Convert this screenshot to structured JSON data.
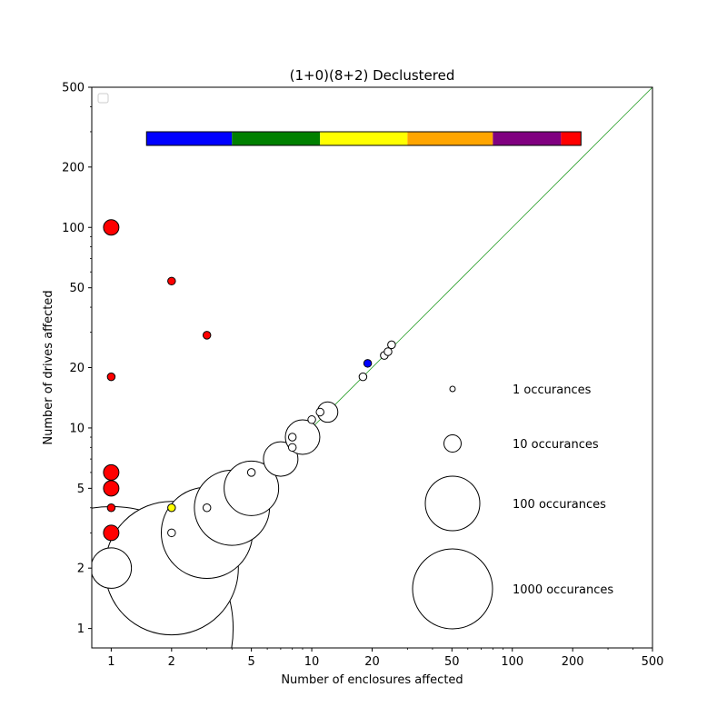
{
  "chart_data": {
    "type": "scatter",
    "title": "(1+0)(8+2) Declustered",
    "xlabel": "Number of enclosures affected",
    "ylabel": "Number of drives affected",
    "xscale": "log",
    "yscale": "log",
    "xlim": [
      0.8,
      500
    ],
    "ylim": [
      0.8,
      500
    ],
    "xticks": [
      1,
      2,
      5,
      10,
      20,
      50,
      100,
      200,
      500
    ],
    "xtick_labels": [
      "1",
      "2",
      "5",
      "10",
      "20",
      "50",
      "100",
      "200",
      "500"
    ],
    "yticks": [
      1,
      2,
      5,
      10,
      20,
      50,
      100,
      200,
      500
    ],
    "ytick_labels": [
      "1",
      "2",
      "5",
      "10",
      "20",
      "50",
      "100",
      "200",
      "500"
    ],
    "grid": false,
    "reference_line": {
      "from": [
        0.8,
        0.8
      ],
      "to": [
        500,
        500
      ],
      "color": "#2ca02c"
    },
    "colorbar": {
      "colors": [
        "#0000ff",
        "#008000",
        "#ffff00",
        "#ffa500",
        "#800080",
        "#ff0000"
      ],
      "breaks": [
        1.5,
        4,
        11,
        30,
        80,
        175,
        220
      ]
    },
    "legend_sizes": [
      {
        "label": "1 occurances",
        "count": 1
      },
      {
        "label": "10 occurances",
        "count": 10
      },
      {
        "label": "100 occurances",
        "count": 100
      },
      {
        "label": "1000 occurances",
        "count": 1000
      }
    ],
    "points": [
      {
        "x": 1,
        "y": 1,
        "count": 2000,
        "color": "#ffffff"
      },
      {
        "x": 1,
        "y": 2,
        "count": 55,
        "color": "#ffffff"
      },
      {
        "x": 1,
        "y": 3,
        "count": 8,
        "color": "#ff0000"
      },
      {
        "x": 1,
        "y": 4,
        "count": 2,
        "color": "#ff0000"
      },
      {
        "x": 1,
        "y": 5,
        "count": 8,
        "color": "#ff0000"
      },
      {
        "x": 1,
        "y": 6,
        "count": 8,
        "color": "#ff0000"
      },
      {
        "x": 1,
        "y": 18,
        "count": 2,
        "color": "#ff0000"
      },
      {
        "x": 1,
        "y": 100,
        "count": 8,
        "color": "#ff0000"
      },
      {
        "x": 2,
        "y": 2,
        "count": 600,
        "color": "#ffffff"
      },
      {
        "x": 2,
        "y": 3,
        "count": 2,
        "color": "#ffffff"
      },
      {
        "x": 2,
        "y": 4,
        "count": 2,
        "color": "#ffff00"
      },
      {
        "x": 2,
        "y": 54,
        "count": 2,
        "color": "#ff0000"
      },
      {
        "x": 3,
        "y": 3,
        "count": 280,
        "color": "#ffffff"
      },
      {
        "x": 3,
        "y": 4,
        "count": 2,
        "color": "#ffffff"
      },
      {
        "x": 3,
        "y": 29,
        "count": 2,
        "color": "#ff0000"
      },
      {
        "x": 4,
        "y": 4,
        "count": 190,
        "color": "#ffffff"
      },
      {
        "x": 5,
        "y": 5,
        "count": 100,
        "color": "#ffffff"
      },
      {
        "x": 5,
        "y": 6,
        "count": 2,
        "color": "#ffffff"
      },
      {
        "x": 7,
        "y": 7,
        "count": 40,
        "color": "#ffffff"
      },
      {
        "x": 8,
        "y": 8,
        "count": 2,
        "color": "#ffffff"
      },
      {
        "x": 8,
        "y": 9,
        "count": 2,
        "color": "#ffffff"
      },
      {
        "x": 9,
        "y": 9,
        "count": 40,
        "color": "#ffffff"
      },
      {
        "x": 10,
        "y": 11,
        "count": 2,
        "color": "#ffffff"
      },
      {
        "x": 11,
        "y": 12,
        "count": 2,
        "color": "#ffffff"
      },
      {
        "x": 12,
        "y": 12,
        "count": 14,
        "color": "#ffffff"
      },
      {
        "x": 18,
        "y": 18,
        "count": 2,
        "color": "#ffffff"
      },
      {
        "x": 19,
        "y": 21,
        "count": 2,
        "color": "#0000ff"
      },
      {
        "x": 23,
        "y": 23,
        "count": 2,
        "color": "#ffffff"
      },
      {
        "x": 24,
        "y": 24,
        "count": 2,
        "color": "#ffffff"
      },
      {
        "x": 25,
        "y": 26,
        "count": 2,
        "color": "#ffffff"
      }
    ],
    "legend": {
      "position": "upper-left",
      "entries": []
    }
  }
}
